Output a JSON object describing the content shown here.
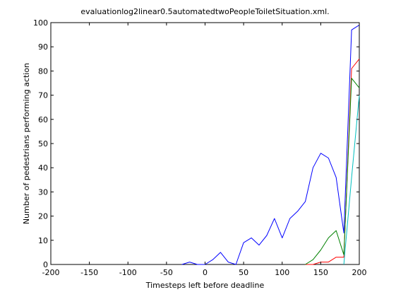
{
  "chart_data": {
    "type": "line",
    "title": "evaluationlog2linear0.5automatedtwoPeopleToiletSituation.xml.",
    "xlabel": "Timesteps left before deadline",
    "ylabel": "Number of pedestrians performing action",
    "xlim": [
      -200,
      200
    ],
    "ylim": [
      0,
      100
    ],
    "xticks": [
      -200,
      -150,
      -100,
      -50,
      0,
      50,
      100,
      150,
      200
    ],
    "yticks": [
      0,
      10,
      20,
      30,
      40,
      50,
      60,
      70,
      80,
      90,
      100
    ],
    "grid": false,
    "legend": "none",
    "series": [
      {
        "color": "#0000ff",
        "points": [
          [
            -30,
            0
          ],
          [
            -20,
            1
          ],
          [
            -10,
            0
          ],
          [
            0,
            0
          ],
          [
            10,
            2
          ],
          [
            20,
            5
          ],
          [
            30,
            1
          ],
          [
            40,
            0
          ],
          [
            50,
            9
          ],
          [
            60,
            11
          ],
          [
            70,
            8
          ],
          [
            80,
            12
          ],
          [
            90,
            19
          ],
          [
            100,
            11
          ],
          [
            110,
            19
          ],
          [
            120,
            22
          ],
          [
            130,
            26
          ],
          [
            140,
            40
          ],
          [
            150,
            46
          ],
          [
            160,
            44
          ],
          [
            170,
            36
          ],
          [
            180,
            13
          ],
          [
            190,
            97
          ],
          [
            200,
            99
          ]
        ]
      },
      {
        "color": "#ff0000",
        "points": [
          [
            130,
            0
          ],
          [
            140,
            0
          ],
          [
            150,
            1
          ],
          [
            160,
            1
          ],
          [
            170,
            3
          ],
          [
            180,
            3
          ],
          [
            190,
            81
          ],
          [
            200,
            85
          ]
        ]
      },
      {
        "color": "#008000",
        "points": [
          [
            130,
            0
          ],
          [
            140,
            2
          ],
          [
            150,
            6
          ],
          [
            160,
            11
          ],
          [
            170,
            14
          ],
          [
            180,
            4
          ],
          [
            190,
            77
          ],
          [
            200,
            73
          ]
        ]
      },
      {
        "color": "#00bfbf",
        "points": [
          [
            180,
            0
          ],
          [
            190,
            36
          ],
          [
            200,
            70
          ]
        ]
      }
    ]
  }
}
